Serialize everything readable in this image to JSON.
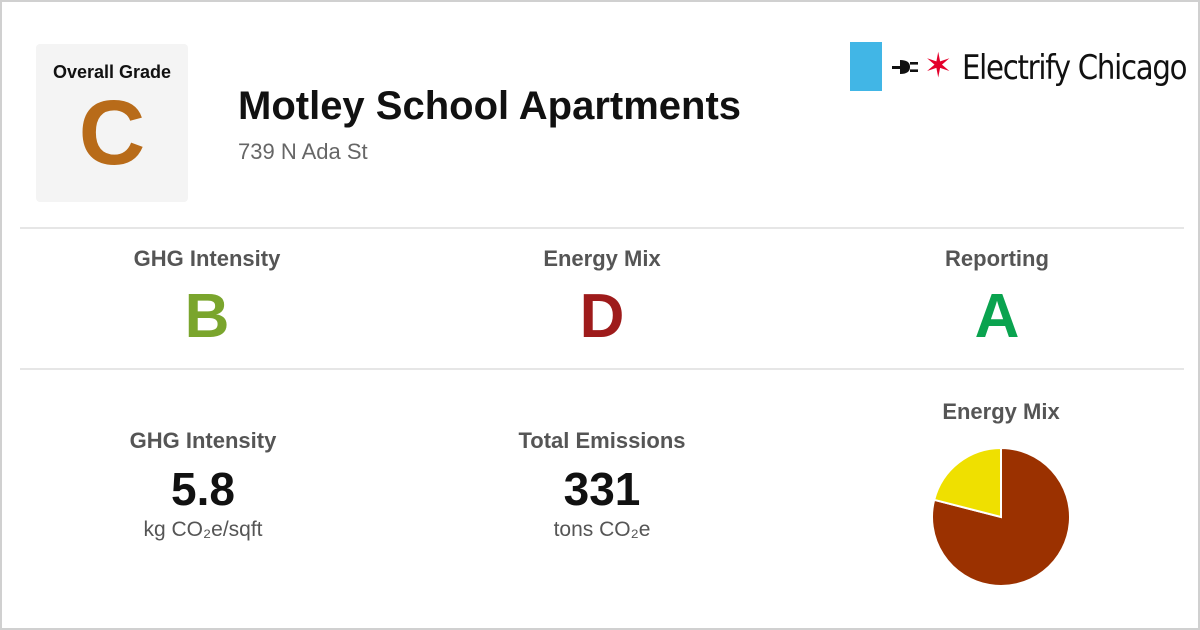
{
  "overall": {
    "label": "Overall Grade",
    "grade": "C",
    "grade_color": "#b86b19"
  },
  "building": {
    "name": "Motley School Apartments",
    "address": "739 N Ada St"
  },
  "brand": {
    "name": "Electrify Chicago",
    "flag_color": "#41b6e6",
    "star_color": "#e4002b",
    "icon": "plug-icon"
  },
  "sub_grades": [
    {
      "label": "GHG Intensity",
      "grade": "B",
      "color": "#7aa52d"
    },
    {
      "label": "Energy Mix",
      "grade": "D",
      "color": "#9e1b1b"
    },
    {
      "label": "Reporting",
      "grade": "A",
      "color": "#0aa34f"
    }
  ],
  "metrics": [
    {
      "label": "GHG Intensity",
      "value": "5.8",
      "unit": "kg CO₂e/sqft"
    },
    {
      "label": "Total Emissions",
      "value": "331",
      "unit": "tons CO₂e"
    }
  ],
  "energy_mix_title": "Energy Mix",
  "chart_data": {
    "type": "pie",
    "title": "Energy Mix",
    "slices": [
      {
        "value": 79,
        "color": "#9b3100"
      },
      {
        "value": 21,
        "color": "#efe000"
      }
    ],
    "start_angle_deg": 0,
    "slice_stroke": "#ffffff"
  }
}
